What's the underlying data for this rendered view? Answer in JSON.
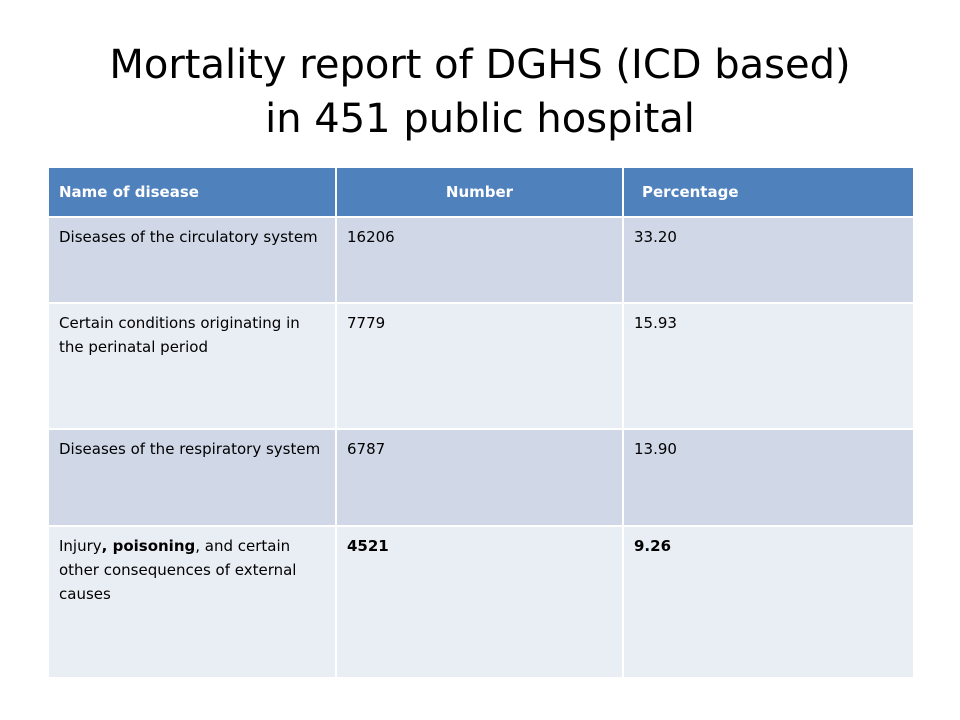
{
  "slide": {
    "title_line1": "Mortality report of DGHS (ICD based)",
    "title_line2": "in 451 public hospital"
  },
  "table": {
    "headers": [
      "Name of disease",
      "Number",
      "Percentage"
    ],
    "rows": [
      {
        "disease": "Diseases of the circulatory system",
        "number": "16206",
        "percentage": "33.20"
      },
      {
        "disease": "Certain conditions originating in the perinatal period",
        "number": "7779",
        "percentage": "15.93"
      },
      {
        "disease": "Diseases of the respiratory system",
        "number": "6787",
        "percentage": "13.90"
      },
      {
        "disease_parts": [
          "Injury",
          ", poisoning",
          ", and certain other consequences of external causes"
        ],
        "number": "4521",
        "percentage": "9.26"
      }
    ]
  },
  "colors": {
    "header_bg": "#4f81bd",
    "row_dark": "#d0d8e8",
    "row_light": "#e9edf4"
  }
}
